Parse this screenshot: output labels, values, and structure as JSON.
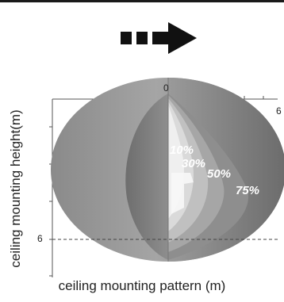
{
  "axis": {
    "x_label": "ceiling mounting pattern (m)",
    "y_label": "ceiling mounting height(m)",
    "x_ticks": [
      "0",
      "6"
    ],
    "y_ticks": [
      "6"
    ]
  },
  "zones": [
    {
      "label": "10%",
      "color": "#f2f2f2"
    },
    {
      "label": "30%",
      "color": "#d6d6d6"
    },
    {
      "label": "50%",
      "color": "#b8b8b8"
    },
    {
      "label": "75%",
      "color": "#9a9a9a"
    }
  ],
  "icons": {
    "direction": "dashed-right-arrow-icon"
  }
}
